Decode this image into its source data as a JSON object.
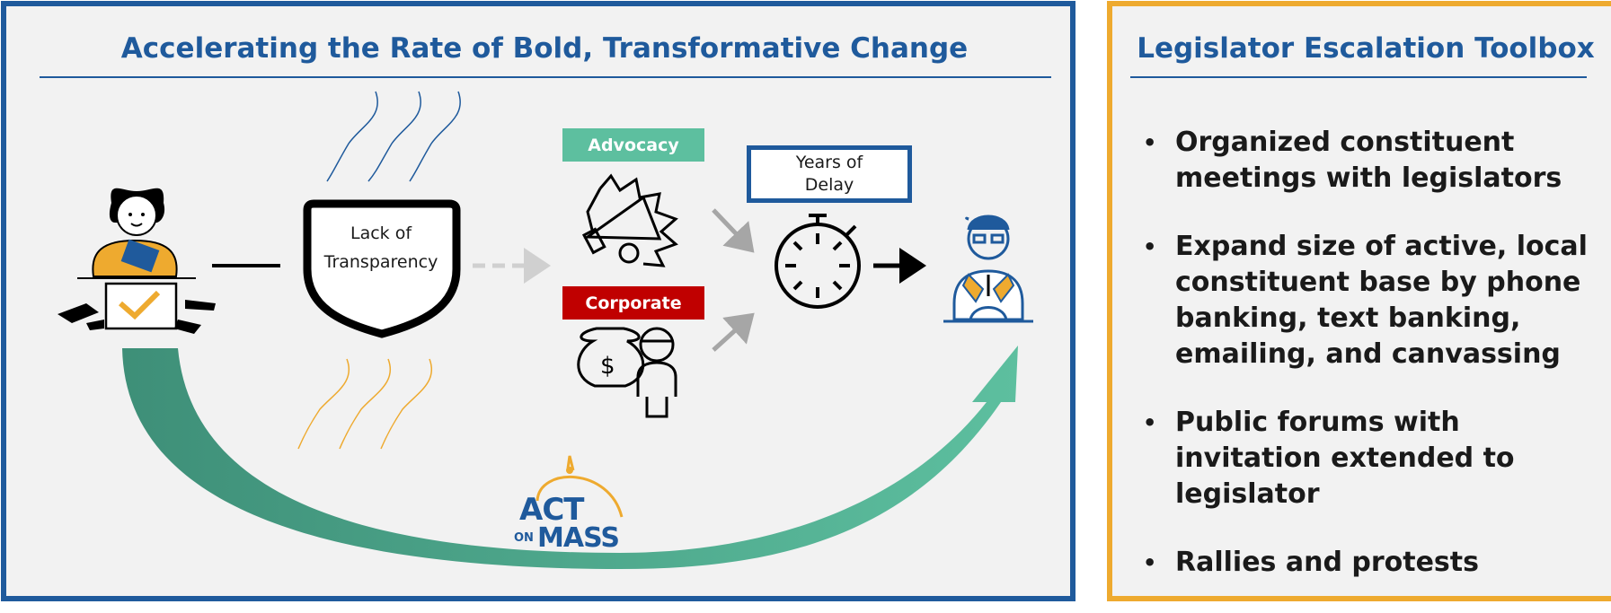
{
  "left_panel": {
    "title": "Accelerating the Rate of Bold, Transformative Change",
    "shield_text_line1": "Lack of",
    "shield_text_line2": "Transparency",
    "advocacy_label": "Advocacy",
    "corporate_label": "Corporate",
    "delay_line1": "Years of",
    "delay_line2": "Delay",
    "logo": {
      "act": "ACT",
      "on": "ON",
      "mass": "MASS"
    }
  },
  "right_panel": {
    "title": "Legislator Escalation Toolbox",
    "bullets": [
      "Organized constituent meetings with legislators",
      "Expand size of active, local constituent base by phone banking, text banking, emailing, and canvassing",
      "Public forums with invitation extended to legislator",
      "Rallies and protests"
    ],
    "bullet_marker": "•"
  },
  "colors": {
    "blue": "#1f5a9c",
    "orange": "#eeaa2f",
    "teal": "#5dbf9f",
    "dark_teal": "#3e8f78",
    "red": "#c00000",
    "advocacy_green": "#5dbf9f"
  },
  "icons": [
    "voter-ballot-icon",
    "shield-icon",
    "megaphone-icon",
    "money-bag-icon",
    "person-icon",
    "stopwatch-icon",
    "legislator-icon",
    "heat-wave-icon",
    "curved-arrow-icon"
  ]
}
